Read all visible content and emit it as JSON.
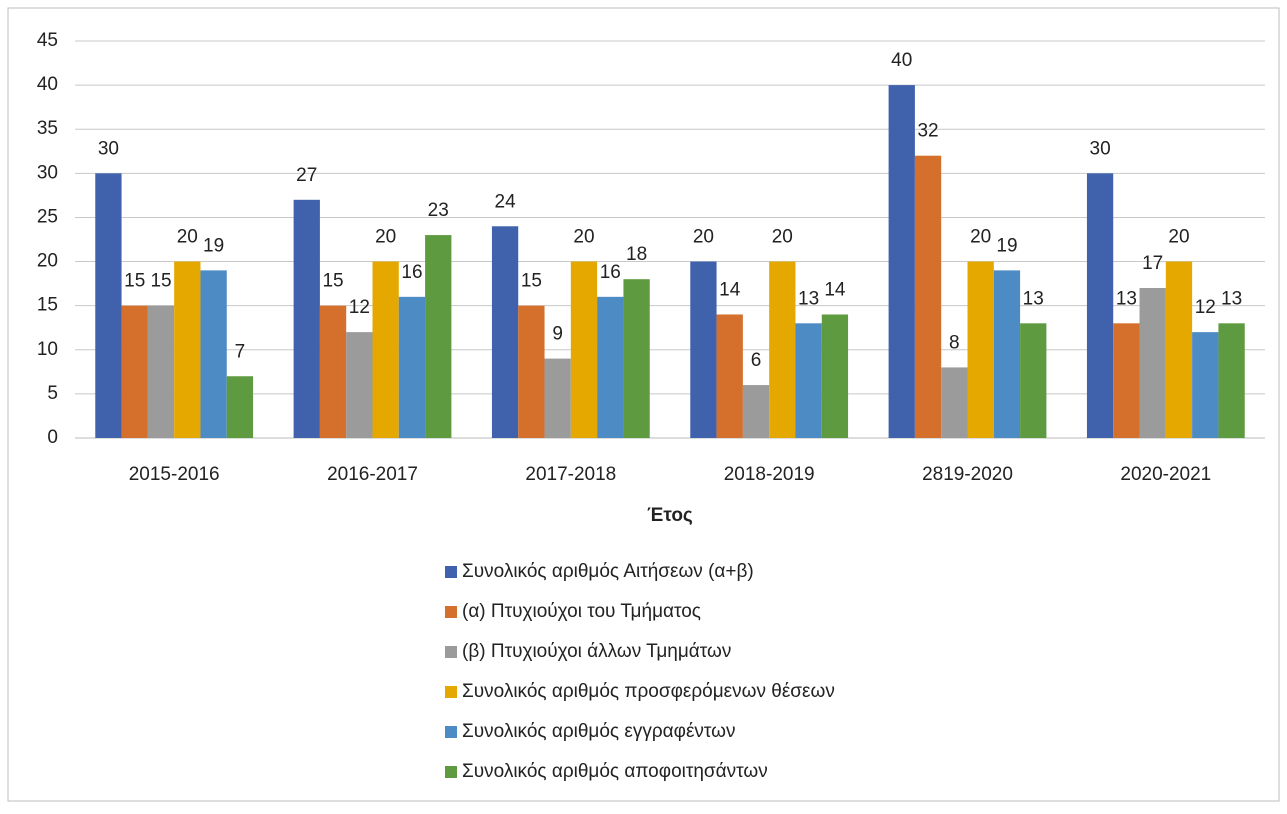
{
  "chart_data": {
    "type": "bar",
    "x_label": "Έτος",
    "categories": [
      "2015-2016",
      "2016-2017",
      "2017-2018",
      "2018-2019",
      "2819-2020",
      "2020-2021"
    ],
    "series": [
      {
        "name": "Συνολικός αριθμός Αιτήσεων (α+β)",
        "color": "#4062ad",
        "values": [
          30,
          27,
          24,
          20,
          40,
          30
        ]
      },
      {
        "name": "(α) Πτυχιούχοι του Τμήματος",
        "color": "#d46f2c",
        "values": [
          15,
          15,
          15,
          14,
          32,
          13
        ]
      },
      {
        "name": "(β) Πτυχιούχοι άλλων Τμημάτων",
        "color": "#9b9b9b",
        "values": [
          15,
          12,
          9,
          6,
          8,
          17
        ]
      },
      {
        "name": "Συνολικός αριθμός προσφερόμενων θέσεων",
        "color": "#e5a800",
        "values": [
          20,
          20,
          20,
          20,
          20,
          20
        ]
      },
      {
        "name": "Συνολικός αριθμός εγγραφέντων",
        "color": "#4d8bc4",
        "values": [
          19,
          16,
          16,
          13,
          19,
          12
        ]
      },
      {
        "name": "Συνολικός αριθμός αποφοιτησάντων",
        "color": "#5e9a3f",
        "values": [
          7,
          23,
          18,
          14,
          13,
          13
        ]
      }
    ],
    "ylim": [
      0,
      45
    ],
    "yticks": [
      0,
      5,
      10,
      15,
      20,
      25,
      30,
      35,
      40,
      45
    ],
    "grid": true,
    "legend": "bottom"
  }
}
